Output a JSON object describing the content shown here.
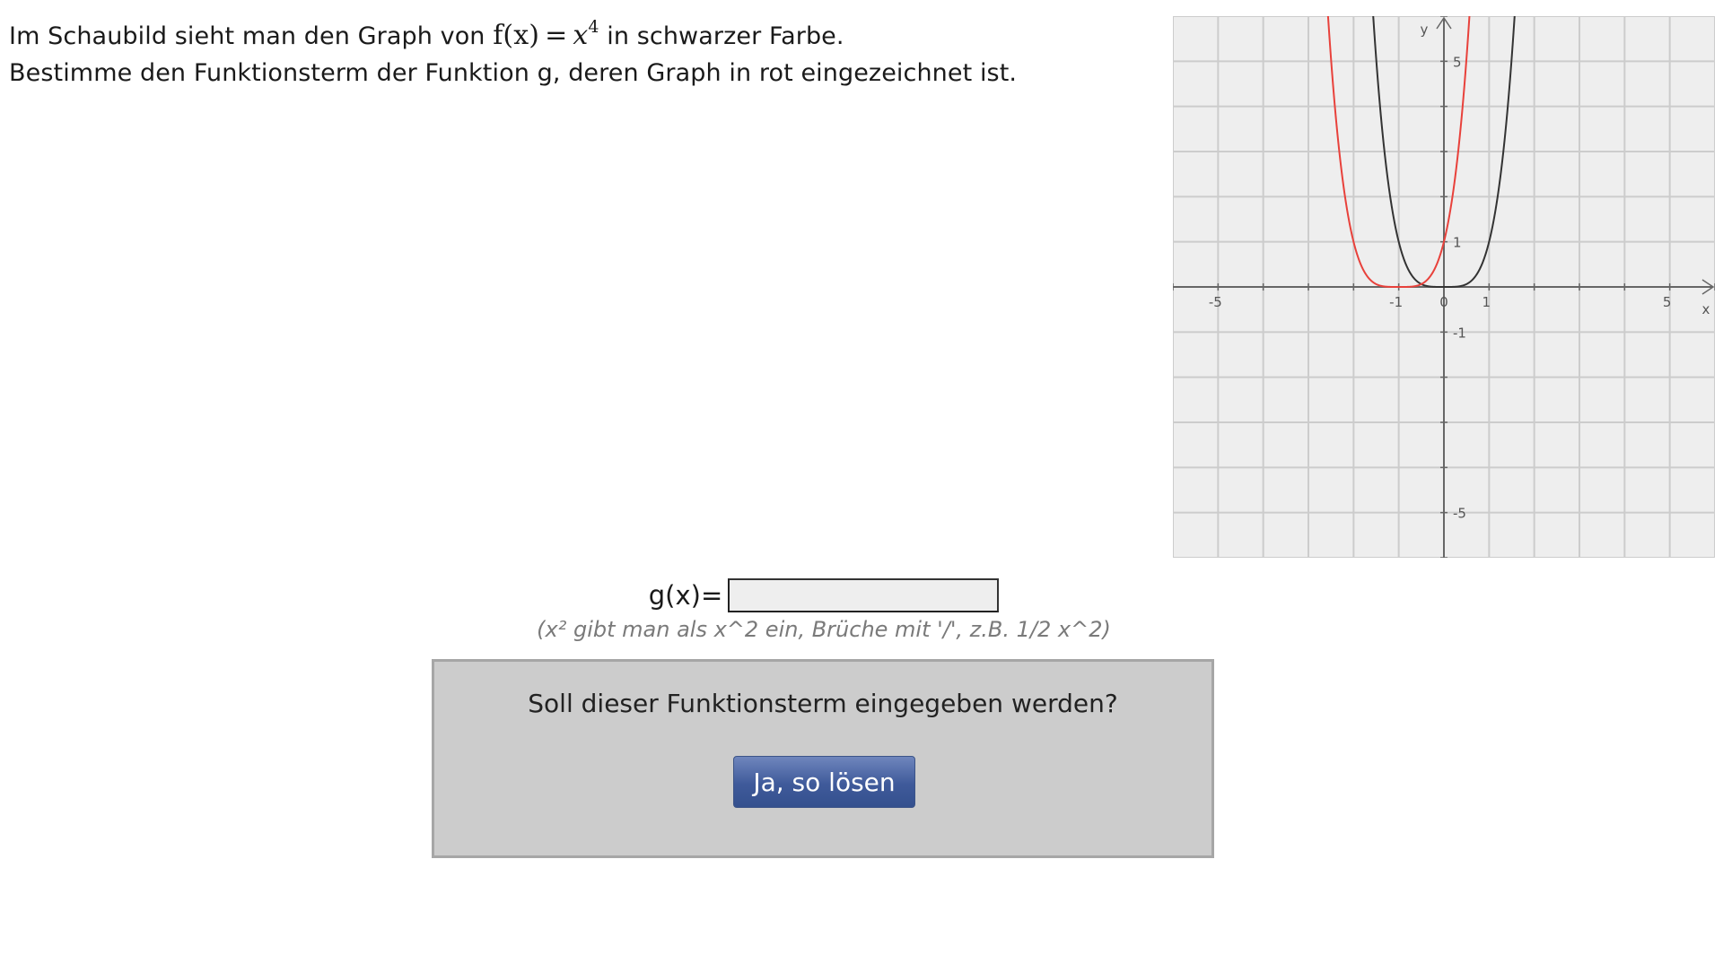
{
  "task": {
    "line1_prefix": "Im Schaubild sieht man den Graph von",
    "func_lhs": "f(x)",
    "func_eq": "=",
    "func_base": "x",
    "func_exp": "4",
    "line1_suffix": "in schwarzer Farbe.",
    "line2": "Bestimme den Funktionsterm der Funktion g, deren Graph in rot eingezeichnet ist."
  },
  "chart_data": {
    "type": "line",
    "xlim": [
      -6,
      6
    ],
    "ylim": [
      -6,
      6
    ],
    "grid": true,
    "xlabel": "x",
    "ylabel": "y",
    "x_ticks": [
      {
        "value": -5,
        "label": "-5"
      },
      {
        "value": -1,
        "label": "-1"
      },
      {
        "value": 0,
        "label": "0"
      },
      {
        "value": 1,
        "label": "1"
      },
      {
        "value": 5,
        "label": "5"
      }
    ],
    "y_ticks": [
      {
        "value": 5,
        "label": "5"
      },
      {
        "value": 1,
        "label": "1"
      },
      {
        "value": -1,
        "label": "-1"
      },
      {
        "value": -5,
        "label": "-5"
      }
    ],
    "series": [
      {
        "formula": "x^4",
        "shift_x": 0,
        "color": "#333333"
      },
      {
        "formula": "(x+1)^4",
        "shift_x": -1,
        "color": "#e8413b"
      }
    ]
  },
  "answer": {
    "label": "g(x)=",
    "value": "",
    "hint": "(x² gibt man als x^2 ein, Brüche mit '/', z.B. 1/2 x^2)"
  },
  "confirm": {
    "question": "Soll dieser Funktionsterm eingegeben werden?",
    "button_label": "Ja, so lösen"
  },
  "colors": {
    "button": "#3f5a9a",
    "box_bg": "#cccccc",
    "grid_bg": "#eeeeee"
  }
}
